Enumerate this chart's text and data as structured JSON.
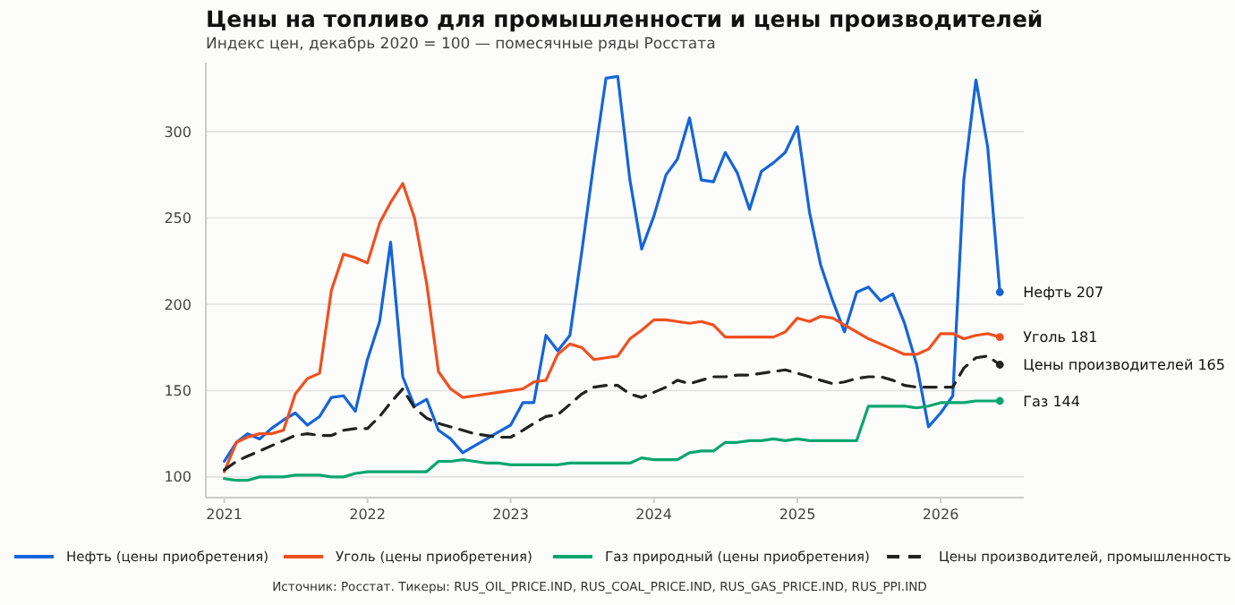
{
  "chart_data": {
    "type": "line",
    "title": "Цены на топливо для промышленности и цены производителей",
    "subtitle": "Индекс цен, декабрь 2020 = 100 — помесячные ряды Росстата",
    "x": [
      "2021-01",
      "2021-02",
      "2021-03",
      "2021-04",
      "2021-05",
      "2021-06",
      "2021-07",
      "2021-08",
      "2021-09",
      "2021-10",
      "2021-11",
      "2021-12",
      "2022-01",
      "2022-02",
      "2022-03",
      "2022-04",
      "2022-05",
      "2022-06",
      "2022-07",
      "2022-08",
      "2022-09",
      "2022-10",
      "2022-11",
      "2022-12",
      "2023-01",
      "2023-02",
      "2023-03",
      "2023-04",
      "2023-05",
      "2023-06",
      "2023-07",
      "2023-08",
      "2023-09",
      "2023-10",
      "2023-11",
      "2023-12",
      "2024-01",
      "2024-02",
      "2024-03",
      "2024-04",
      "2024-05",
      "2024-06",
      "2024-07",
      "2024-08",
      "2024-09",
      "2024-10",
      "2024-11",
      "2024-12",
      "2025-01",
      "2025-02",
      "2025-03",
      "2025-04",
      "2025-05",
      "2025-06",
      "2025-07",
      "2025-08",
      "2025-09",
      "2025-10",
      "2025-11",
      "2025-12",
      "2026-01",
      "2026-02",
      "2026-03",
      "2026-04",
      "2026-05",
      "2026-06"
    ],
    "series": [
      {
        "name": "Нефть (цены приобретения)",
        "color": "#1565d8",
        "line_style": "solid",
        "values": [
          109,
          120,
          125,
          122,
          128,
          133,
          137,
          130,
          135,
          146,
          147,
          138,
          168,
          190,
          236,
          158,
          141,
          145,
          127,
          122,
          114,
          118,
          122,
          126,
          130,
          143,
          143,
          182,
          173,
          182,
          230,
          282,
          331,
          332,
          272,
          232,
          251,
          275,
          284,
          308,
          272,
          271,
          288,
          276,
          255,
          277,
          282,
          288,
          303,
          253,
          223,
          202,
          184,
          207,
          210,
          202,
          206,
          189,
          165,
          129,
          137,
          147,
          272,
          330,
          291,
          207
        ]
      },
      {
        "name": "Уголь (цены приобретения)",
        "color": "#f0501e",
        "line_style": "solid",
        "values": [
          103,
          120,
          123,
          125,
          125,
          127,
          148,
          157,
          160,
          208,
          229,
          227,
          224,
          247,
          259,
          270,
          250,
          212,
          161,
          151,
          146,
          147,
          148,
          149,
          150,
          151,
          155,
          156,
          171,
          177,
          175,
          168,
          169,
          170,
          180,
          185,
          191,
          191,
          190,
          189,
          190,
          188,
          181,
          181,
          181,
          181,
          181,
          184,
          192,
          190,
          193,
          192,
          188,
          184,
          180,
          177,
          174,
          171,
          171,
          174,
          183,
          183,
          180,
          182,
          183,
          181
        ]
      },
      {
        "name": "Газ природный (цены приобретения)",
        "color": "#0aa66e",
        "line_style": "solid",
        "values": [
          99,
          98,
          98,
          100,
          100,
          100,
          101,
          101,
          101,
          100,
          100,
          102,
          103,
          103,
          103,
          103,
          103,
          103,
          109,
          109,
          110,
          109,
          108,
          108,
          107,
          107,
          107,
          107,
          107,
          108,
          108,
          108,
          108,
          108,
          108,
          111,
          110,
          110,
          110,
          114,
          115,
          115,
          120,
          120,
          121,
          121,
          122,
          121,
          122,
          121,
          121,
          121,
          121,
          121,
          141,
          141,
          141,
          141,
          140,
          141,
          143,
          143,
          143,
          144,
          144,
          144
        ]
      },
      {
        "name": "Цены производителей, промышленность",
        "color": "#222222",
        "line_style": "dashed",
        "values": [
          104,
          109,
          112,
          115,
          118,
          121,
          124,
          125,
          124,
          124,
          127,
          128,
          128,
          135,
          143,
          151,
          140,
          134,
          131,
          129,
          127,
          125,
          124,
          123,
          123,
          127,
          131,
          135,
          136,
          142,
          148,
          152,
          153,
          153,
          148,
          146,
          149,
          152,
          156,
          154,
          156,
          158,
          158,
          159,
          159,
          160,
          161,
          162,
          160,
          158,
          156,
          154,
          155,
          157,
          158,
          158,
          156,
          153,
          152,
          152,
          152,
          152,
          163,
          169,
          170,
          165
        ]
      }
    ],
    "xlim": [
      "2020-11-15",
      "2026-08-01"
    ],
    "xticks": [
      {
        "value": "2021-01",
        "label": "2021"
      },
      {
        "value": "2022-01",
        "label": "2022"
      },
      {
        "value": "2023-01",
        "label": "2023"
      },
      {
        "value": "2024-01",
        "label": "2024"
      },
      {
        "value": "2025-01",
        "label": "2025"
      },
      {
        "value": "2026-01",
        "label": "2026"
      }
    ],
    "ylim": [
      88,
      340
    ],
    "yticks": [
      100,
      150,
      200,
      250,
      300
    ],
    "grid": "y",
    "legend": "bottom",
    "annotations": [
      {
        "text": "Нефть 207",
        "x": "2026-06",
        "y": 207
      },
      {
        "text": "Уголь 181",
        "x": "2026-06",
        "y": 181
      },
      {
        "text": "Цены производителей 165",
        "x": "2026-06",
        "y": 165
      },
      {
        "text": "Газ 144",
        "x": "2026-06",
        "y": 144
      },
      "Источник: Росстат. Тикеры: RUS_OIL_PRICE.IND, RUS_COAL_PRICE.IND, RUS_GAS_PRICE.IND, RUS_PPI.IND"
    ]
  }
}
